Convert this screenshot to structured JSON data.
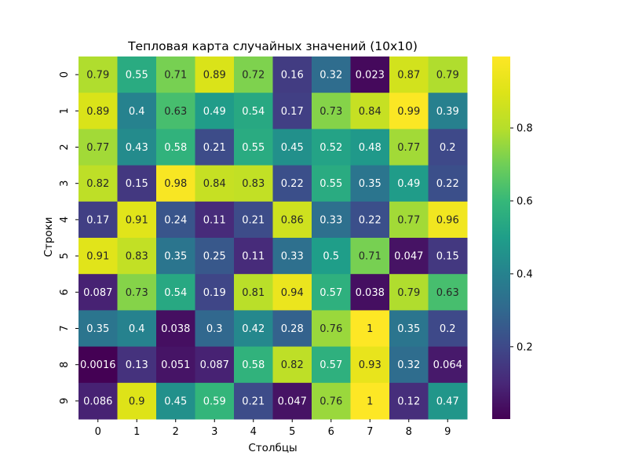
{
  "chart_data": {
    "type": "heatmap",
    "title": "Тепловая карта случайных значений (10x10)",
    "xlabel": "Столбцы",
    "ylabel": "Строки",
    "x_categories": [
      "0",
      "1",
      "2",
      "3",
      "4",
      "5",
      "6",
      "7",
      "8",
      "9"
    ],
    "y_categories": [
      "0",
      "1",
      "2",
      "3",
      "4",
      "5",
      "6",
      "7",
      "8",
      "9"
    ],
    "values": [
      [
        0.79,
        0.55,
        0.71,
        0.89,
        0.72,
        0.16,
        0.32,
        0.023,
        0.87,
        0.79
      ],
      [
        0.89,
        0.4,
        0.63,
        0.49,
        0.54,
        0.17,
        0.73,
        0.84,
        0.99,
        0.39
      ],
      [
        0.77,
        0.43,
        0.58,
        0.21,
        0.55,
        0.45,
        0.52,
        0.48,
        0.77,
        0.2
      ],
      [
        0.82,
        0.15,
        0.98,
        0.84,
        0.83,
        0.22,
        0.55,
        0.35,
        0.49,
        0.22
      ],
      [
        0.17,
        0.91,
        0.24,
        0.11,
        0.21,
        0.86,
        0.33,
        0.22,
        0.77,
        0.96
      ],
      [
        0.91,
        0.83,
        0.35,
        0.25,
        0.11,
        0.33,
        0.5,
        0.71,
        0.047,
        0.15
      ],
      [
        0.087,
        0.73,
        0.54,
        0.19,
        0.81,
        0.94,
        0.57,
        0.038,
        0.79,
        0.63
      ],
      [
        0.35,
        0.4,
        0.038,
        0.3,
        0.42,
        0.28,
        0.76,
        1,
        0.35,
        0.2
      ],
      [
        0.0016,
        0.13,
        0.051,
        0.087,
        0.58,
        0.82,
        0.57,
        0.93,
        0.32,
        0.064
      ],
      [
        0.086,
        0.9,
        0.45,
        0.59,
        0.21,
        0.047,
        0.76,
        1,
        0.12,
        0.47
      ]
    ],
    "colormap": "viridis",
    "vmin": 0.0016,
    "vmax": 0.996,
    "colorbar_ticks": [
      "0.2",
      "0.4",
      "0.6",
      "0.8"
    ],
    "colorbar_tick_values": [
      0.2,
      0.4,
      0.6,
      0.8
    ],
    "annotate_cells": true,
    "grid": false
  }
}
